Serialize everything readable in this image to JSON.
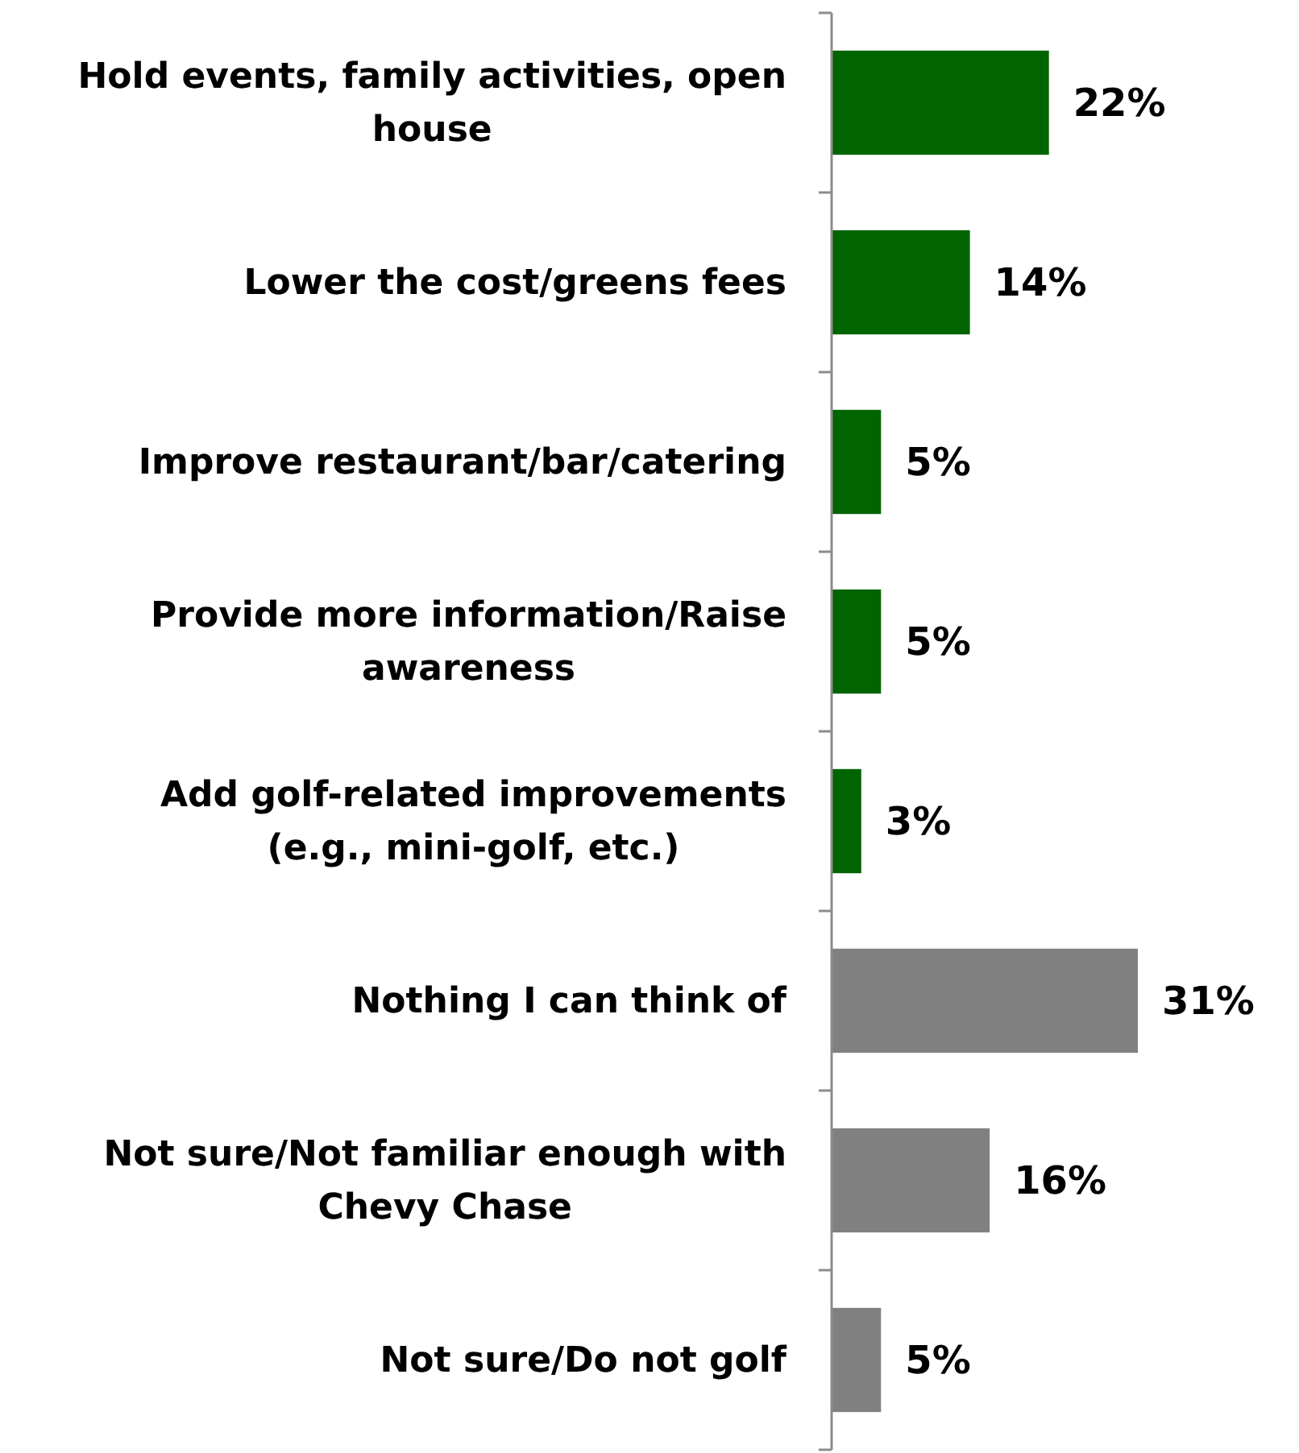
{
  "chart_data": {
    "type": "bar",
    "orientation": "horizontal",
    "categories": [
      "Hold events, family activities, open house",
      "Lower the cost/greens fees",
      "Improve restaurant/bar/catering",
      "Provide more information/Raise awareness",
      "Add golf-related improvements (e.g., mini-golf, etc.)",
      "Nothing I can think of",
      "Not sure/Not familiar enough with Chevy Chase",
      "Not sure/Do not golf"
    ],
    "values": [
      22,
      14,
      5,
      5,
      3,
      31,
      16,
      5
    ],
    "colors": [
      "#006400",
      "#006400",
      "#006400",
      "#006400",
      "#006400",
      "#808080",
      "#808080",
      "#808080"
    ],
    "value_labels": [
      "22%",
      "14%",
      "5%",
      "5%",
      "3%",
      "31%",
      "16%",
      "5%"
    ]
  }
}
